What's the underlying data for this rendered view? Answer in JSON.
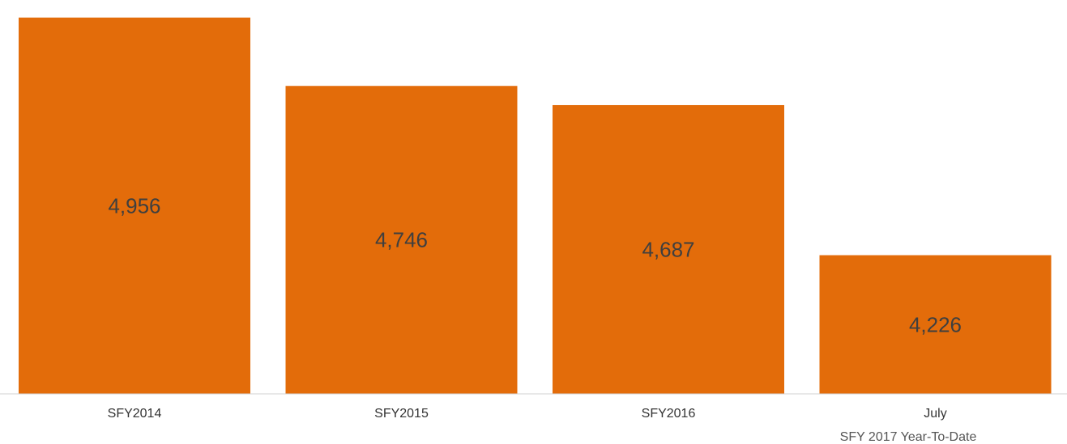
{
  "chart_data": {
    "type": "bar",
    "categories": [
      "SFY2014",
      "SFY2015",
      "SFY2016",
      "July"
    ],
    "values": [
      4956,
      4746,
      4687,
      4226
    ],
    "value_labels": [
      "4,956",
      "4,746",
      "4,687",
      "4,226"
    ],
    "category_subtitle": "SFY 2017 Year-To-Date",
    "title": "",
    "xlabel": "",
    "ylabel": "",
    "ylim": [
      3800,
      5000
    ],
    "grid": false,
    "legend": "none",
    "bar_color": "#e36c0a",
    "axis_color": "#d0d0d0"
  }
}
